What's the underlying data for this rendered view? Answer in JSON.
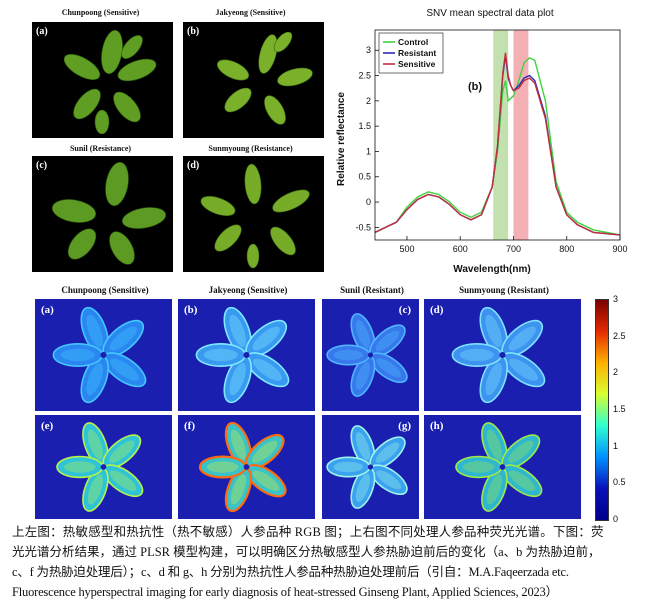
{
  "rgb": {
    "panels": [
      {
        "title": "Chunpoong (Sensitive)",
        "letter": "(a)"
      },
      {
        "title": "Jakyeong (Sensitive)",
        "letter": "(b)"
      },
      {
        "title": "Sunil (Resistance)",
        "letter": "(c)"
      },
      {
        "title": "Sunmyoung (Resistance)",
        "letter": "(d)"
      }
    ]
  },
  "hyperspectral": {
    "titles": [
      "Chunpoong (Sensitive)",
      "Jakyeong (Sensitive)",
      "Sunil (Resistant)",
      "Sunmyoung (Resistant)"
    ],
    "letters": [
      "(a)",
      "(b)",
      "(c)",
      "(d)",
      "(e)",
      "(f)",
      "(g)",
      "(h)"
    ],
    "colorbar": {
      "ticks": [
        "3",
        "2.5",
        "2",
        "1.5",
        "1",
        "0.5",
        "0"
      ],
      "colors": [
        "#7a0000",
        "#e32b00",
        "#ffb000",
        "#d8ff30",
        "#30ffd0",
        "#0090ff",
        "#0a10b8",
        "#00008a"
      ]
    }
  },
  "chart_data": {
    "type": "line",
    "title": "SNV mean spectral data plot",
    "panel_label": "(b)",
    "xlabel": "Wavelength(nm)",
    "ylabel": "Relative reflectance",
    "xlim": [
      440,
      900
    ],
    "ylim": [
      -0.75,
      3.4
    ],
    "xticks": [
      500,
      600,
      700,
      800,
      900
    ],
    "yticks": [
      -0.5,
      0,
      0.5,
      1,
      1.5,
      2,
      2.5,
      3
    ],
    "legend_position": "top-left",
    "highlight_bands": [
      {
        "x_range": [
          662,
          690
        ],
        "color": "#b8dca0"
      },
      {
        "x_range": [
          700,
          728
        ],
        "color": "#f2a3a8"
      }
    ],
    "x": [
      440,
      460,
      480,
      500,
      520,
      540,
      560,
      580,
      600,
      620,
      640,
      660,
      670,
      680,
      685,
      690,
      695,
      700,
      710,
      720,
      730,
      740,
      760,
      780,
      800,
      820,
      850,
      900
    ],
    "series": [
      {
        "name": "Control",
        "color": "#3fd43f",
        "values": [
          -0.6,
          -0.5,
          -0.4,
          -0.1,
          0.1,
          0.2,
          0.15,
          0.0,
          -0.2,
          -0.3,
          -0.2,
          0.3,
          1.0,
          2.2,
          2.4,
          2.0,
          2.05,
          2.1,
          2.4,
          2.75,
          2.85,
          2.8,
          2.0,
          0.4,
          -0.2,
          -0.4,
          -0.55,
          -0.65
        ]
      },
      {
        "name": "Resistant",
        "color": "#2a2ab8",
        "values": [
          -0.6,
          -0.5,
          -0.4,
          -0.15,
          0.05,
          0.15,
          0.1,
          -0.05,
          -0.25,
          -0.35,
          -0.25,
          0.3,
          1.1,
          2.5,
          2.9,
          2.45,
          2.3,
          2.2,
          2.3,
          2.45,
          2.5,
          2.4,
          1.7,
          0.3,
          -0.25,
          -0.45,
          -0.6,
          -0.65
        ]
      },
      {
        "name": "Sensitive",
        "color": "#c0303c",
        "values": [
          -0.6,
          -0.5,
          -0.4,
          -0.15,
          0.05,
          0.15,
          0.1,
          -0.05,
          -0.25,
          -0.35,
          -0.25,
          0.3,
          1.1,
          2.55,
          2.95,
          2.5,
          2.3,
          2.2,
          2.25,
          2.4,
          2.45,
          2.35,
          1.65,
          0.3,
          -0.25,
          -0.45,
          -0.6,
          -0.65
        ]
      }
    ]
  },
  "caption": {
    "lines": [
      "上左图：热敏感型和热抗性（热不敏感）人参品种 RGB 图；上右图不同处理人参品种荧光光谱。下图：荧",
      "光光谱分析结果，通过 PLSR 模型构建，可以明确区分热敏感型人参热胁迫前后的变化（a、b 为热胁迫前，",
      "c、f 为热胁迫处理后）；c、d 和 g、h 分别为热抗性人参品种热胁迫处理前后（引自：M.A.Faqeerzada etc.",
      "Fluorescence hyperspectral imaging for early diagnosis of heat-stressed Ginseng Plant, Applied Sciences, 2023）"
    ]
  }
}
